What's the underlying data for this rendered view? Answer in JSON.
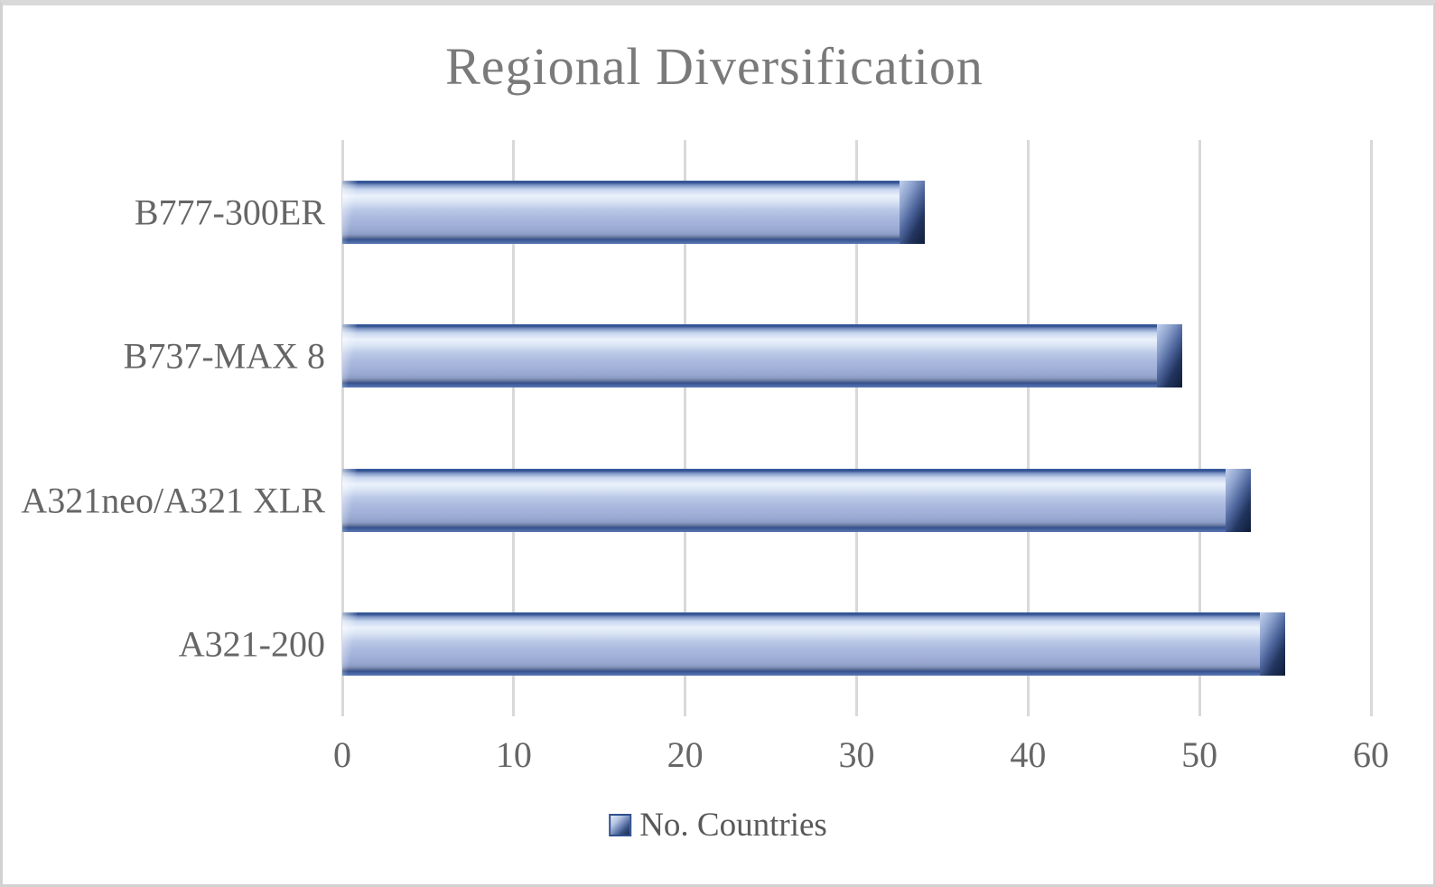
{
  "chart_data": {
    "type": "bar",
    "orientation": "horizontal",
    "title": "Regional Diversification",
    "categories": [
      "B777-300ER",
      "B737-MAX 8",
      "A321neo/A321 XLR",
      "A321-200"
    ],
    "series": [
      {
        "name": "No. Countries",
        "values": [
          34,
          49,
          53,
          55
        ]
      }
    ],
    "xlabel": "",
    "ylabel": "",
    "xlim": [
      0,
      60
    ],
    "xticks": [
      0,
      10,
      20,
      30,
      40,
      50,
      60
    ],
    "grid": "vertical-gridlines-on",
    "legend_position": "bottom-center"
  },
  "colors": {
    "bar_fill_main": "#aab9de",
    "bar_highlight": "#eaf1fb",
    "bar_edge_dark": "#2f4f8f",
    "gridline": "#d9d9d9",
    "title_text": "#7a7a7a",
    "axis_text": "#666666",
    "legend_text": "#595959",
    "background": "#ffffff",
    "frame_border": "#d2d2d2"
  }
}
